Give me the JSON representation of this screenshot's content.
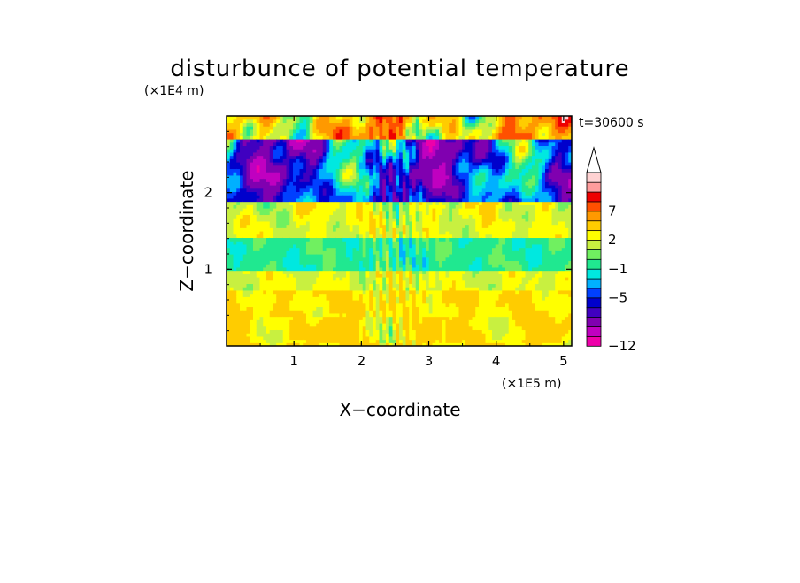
{
  "chart_data": {
    "type": "heatmap",
    "title": "disturbunce of potential temperature",
    "time_label": "t=30600 s",
    "xlabel": "X−coordinate",
    "ylabel": "Z−coordinate",
    "x_unit": "(×1E5 m)",
    "y_unit": "(×1E4 m)",
    "xlim": [
      0,
      5.12
    ],
    "ylim": [
      0,
      3.0
    ],
    "x_ticks": [
      1,
      2,
      3,
      4,
      5
    ],
    "x_tick_labels": [
      "1",
      "2",
      "3",
      "4",
      "5"
    ],
    "y_ticks": [
      1,
      2
    ],
    "y_tick_labels": [
      "1",
      "2"
    ],
    "colorbar": {
      "levels": [
        -12,
        -10,
        -8,
        -6,
        -5,
        -4,
        -3,
        -2,
        -1,
        0,
        1,
        2,
        3,
        5,
        7,
        9,
        11
      ],
      "labeled_values": [
        "-12",
        "−5",
        "−1",
        "2",
        "7"
      ],
      "labels": [
        "−12",
        "−5",
        "−1",
        "2",
        "7"
      ],
      "colors": [
        "#ee00aa",
        "#c000c0",
        "#8000b0",
        "#4000c0",
        "#0000cc",
        "#0040ff",
        "#00b0ff",
        "#00e8e0",
        "#20e890",
        "#70f060",
        "#c8f040",
        "#ffff00",
        "#ffcc00",
        "#ff9900",
        "#ff5000",
        "#ee0000",
        "#ff9c9c",
        "#ffd2d2"
      ],
      "extends_max": true
    },
    "bands": [
      {
        "z_range": [
          0.0,
          0.75
        ],
        "typical_value": 3,
        "description_value": "3"
      },
      {
        "z_range": [
          0.75,
          1.0
        ],
        "typical_value": 2
      },
      {
        "z_range": [
          1.0,
          1.4
        ],
        "typical_value": -0.5
      },
      {
        "z_range": [
          1.4,
          1.9
        ],
        "typical_value": 2
      },
      {
        "z_range": [
          1.9,
          2.7
        ],
        "typical_value": -4
      },
      {
        "z_range": [
          2.7,
          3.0
        ],
        "typical_value": 4
      }
    ]
  }
}
